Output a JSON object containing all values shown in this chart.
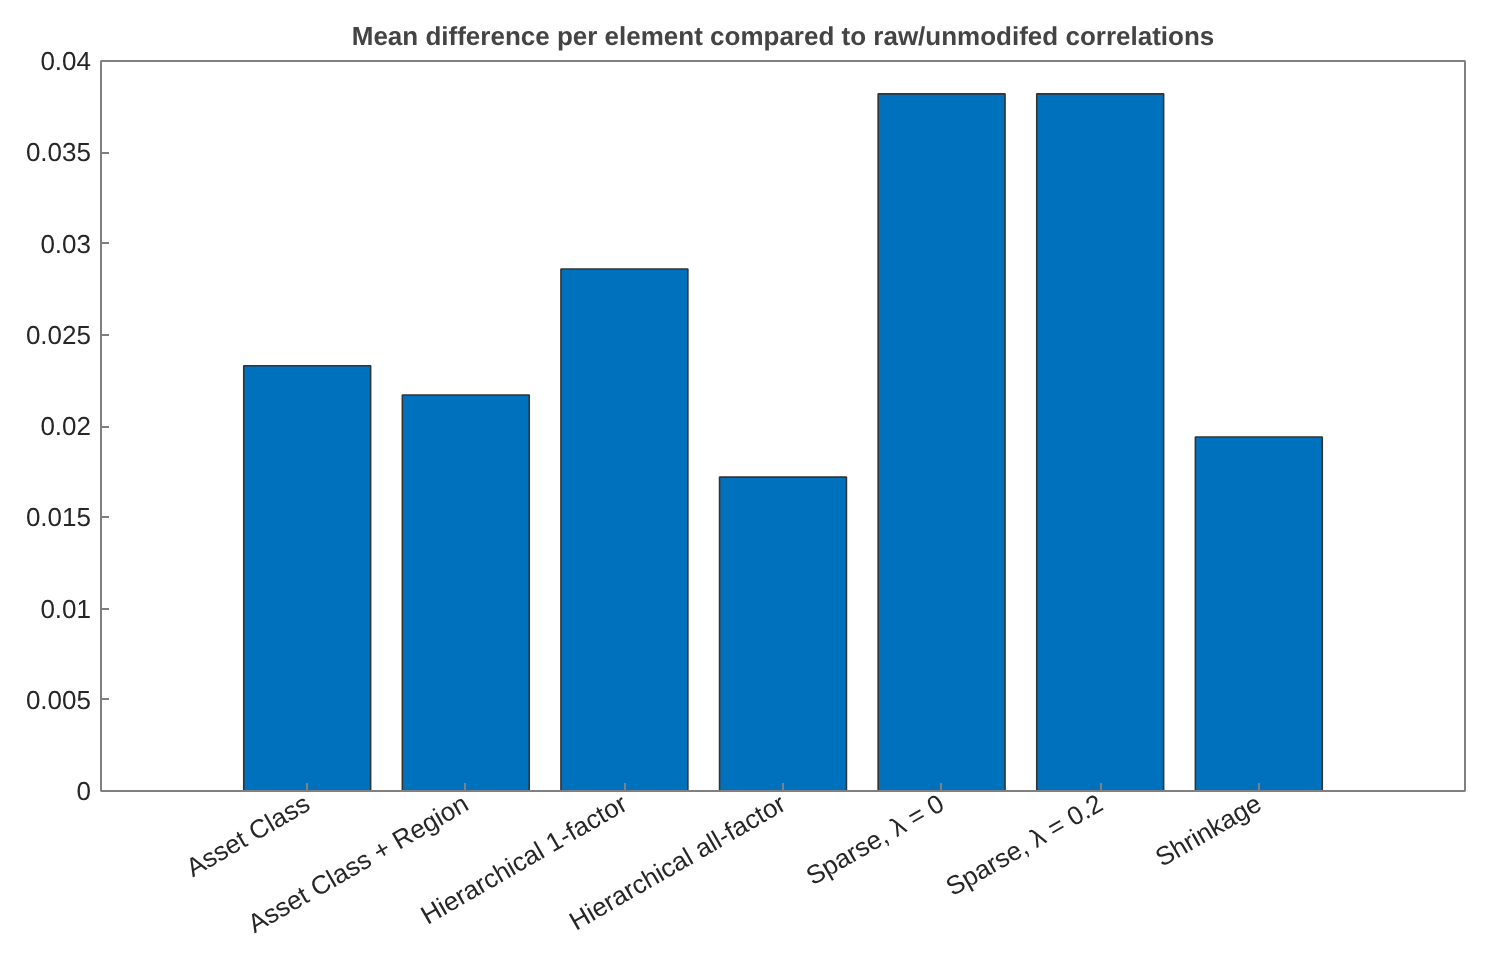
{
  "chart_data": {
    "type": "bar",
    "title": "Mean difference per element compared to raw/unmodifed correlations",
    "categories": [
      "Asset Class",
      "Asset Class + Region",
      "Hierarchical 1-factor",
      "Hierarchical all-factor",
      "Sparse, λ = 0",
      "Sparse, λ = 0.2",
      "Shrinkage"
    ],
    "values": [
      0.0233,
      0.0217,
      0.0286,
      0.0172,
      0.0382,
      0.0382,
      0.0194
    ],
    "color": "#0072bd",
    "ylim": [
      0,
      0.04
    ],
    "yticks": [
      0,
      0.005,
      0.01,
      0.015,
      0.02,
      0.025,
      0.03,
      0.035,
      0.04
    ],
    "grid": false
  }
}
